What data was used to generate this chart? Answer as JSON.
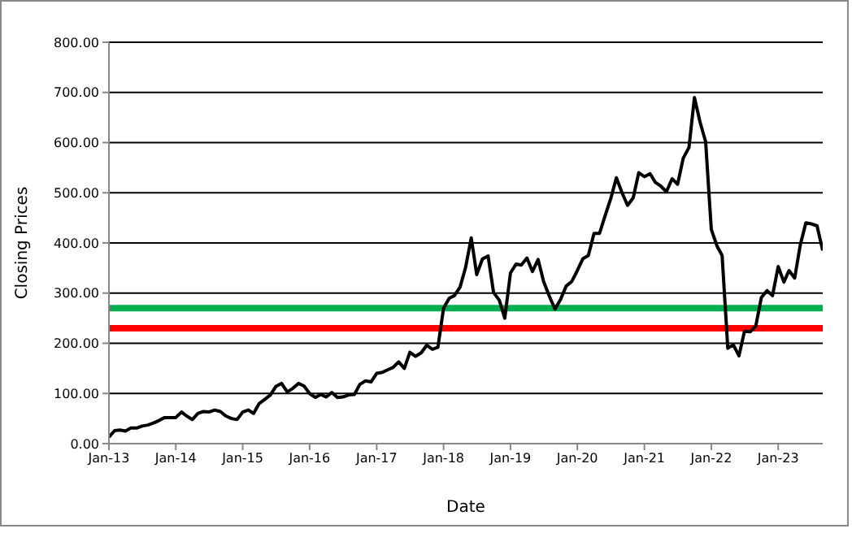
{
  "chart_data": {
    "type": "line",
    "xlabel": "Date",
    "ylabel": "Closing Prices",
    "x": [
      "2013-01",
      "2013-02",
      "2013-03",
      "2013-04",
      "2013-05",
      "2013-06",
      "2013-07",
      "2013-08",
      "2013-09",
      "2013-10",
      "2013-11",
      "2013-12",
      "2014-01",
      "2014-02",
      "2014-03",
      "2014-04",
      "2014-05",
      "2014-06",
      "2014-07",
      "2014-08",
      "2014-09",
      "2014-10",
      "2014-11",
      "2014-12",
      "2015-01",
      "2015-02",
      "2015-03",
      "2015-04",
      "2015-05",
      "2015-06",
      "2015-07",
      "2015-08",
      "2015-09",
      "2015-10",
      "2015-11",
      "2015-12",
      "2016-01",
      "2016-02",
      "2016-03",
      "2016-04",
      "2016-05",
      "2016-06",
      "2016-07",
      "2016-08",
      "2016-09",
      "2016-10",
      "2016-11",
      "2016-12",
      "2017-01",
      "2017-02",
      "2017-03",
      "2017-04",
      "2017-05",
      "2017-06",
      "2017-07",
      "2017-08",
      "2017-09",
      "2017-10",
      "2017-11",
      "2017-12",
      "2018-01",
      "2018-02",
      "2018-03",
      "2018-04",
      "2018-05",
      "2018-06",
      "2018-07",
      "2018-08",
      "2018-09",
      "2018-10",
      "2018-11",
      "2018-12",
      "2019-01",
      "2019-02",
      "2019-03",
      "2019-04",
      "2019-05",
      "2019-06",
      "2019-07",
      "2019-08",
      "2019-09",
      "2019-10",
      "2019-11",
      "2019-12",
      "2020-01",
      "2020-02",
      "2020-03",
      "2020-04",
      "2020-05",
      "2020-06",
      "2020-07",
      "2020-08",
      "2020-09",
      "2020-10",
      "2020-11",
      "2020-12",
      "2021-01",
      "2021-02",
      "2021-03",
      "2021-04",
      "2021-05",
      "2021-06",
      "2021-07",
      "2021-08",
      "2021-09",
      "2021-10",
      "2021-11",
      "2021-12",
      "2022-01",
      "2022-02",
      "2022-03",
      "2022-04",
      "2022-05",
      "2022-06",
      "2022-07",
      "2022-08",
      "2022-09",
      "2022-10",
      "2022-11",
      "2022-12",
      "2023-01",
      "2023-02",
      "2023-03",
      "2023-04",
      "2023-05",
      "2023-06",
      "2023-07",
      "2023-08",
      "2023-09"
    ],
    "series": [
      {
        "color": "#000000",
        "values": [
          13,
          26,
          27,
          25,
          31,
          31,
          35,
          37,
          41,
          46,
          52,
          52,
          52,
          63,
          55,
          48,
          60,
          64,
          63,
          67,
          64,
          55,
          50,
          48,
          63,
          67,
          60,
          80,
          88,
          97,
          114,
          120,
          103,
          110,
          120,
          115,
          100,
          92,
          98,
          93,
          102,
          92,
          93,
          97,
          98,
          118,
          125,
          123,
          140,
          142,
          147,
          152,
          163,
          150,
          182,
          174,
          181,
          196,
          188,
          192,
          270,
          290,
          295,
          312,
          351,
          410,
          337,
          368,
          374,
          301,
          286,
          250,
          340,
          358,
          356,
          370,
          343,
          367,
          323,
          294,
          268,
          287,
          314,
          323,
          345,
          369,
          375,
          419,
          419,
          455,
          488,
          530,
          500,
          475,
          490,
          540,
          532,
          538,
          521,
          513,
          502,
          528,
          517,
          569,
          590,
          690,
          640,
          602,
          427,
          394,
          375,
          190,
          197,
          175,
          224,
          223,
          235,
          291,
          305,
          295,
          353,
          322,
          345,
          330,
          395,
          440,
          438,
          434,
          385
        ]
      }
    ],
    "xlim": [
      "2013-01",
      "2023-09"
    ],
    "xticks": [
      {
        "value": "2013-01",
        "label": "Jan-13"
      },
      {
        "value": "2014-01",
        "label": "Jan-14"
      },
      {
        "value": "2015-01",
        "label": "Jan-15"
      },
      {
        "value": "2016-01",
        "label": "Jan-16"
      },
      {
        "value": "2017-01",
        "label": "Jan-17"
      },
      {
        "value": "2018-01",
        "label": "Jan-18"
      },
      {
        "value": "2019-01",
        "label": "Jan-19"
      },
      {
        "value": "2020-01",
        "label": "Jan-20"
      },
      {
        "value": "2021-01",
        "label": "Jan-21"
      },
      {
        "value": "2022-01",
        "label": "Jan-22"
      },
      {
        "value": "2023-01",
        "label": "Jan-23"
      }
    ],
    "ylim": [
      0,
      800
    ],
    "yticks": [
      {
        "value": 0,
        "label": "0.00"
      },
      {
        "value": 100,
        "label": "100.00"
      },
      {
        "value": 200,
        "label": "200.00"
      },
      {
        "value": 300,
        "label": "300.00"
      },
      {
        "value": 400,
        "label": "400.00"
      },
      {
        "value": 500,
        "label": "500.00"
      },
      {
        "value": 600,
        "label": "600.00"
      },
      {
        "value": 700,
        "label": "700.00"
      },
      {
        "value": 800,
        "label": "800.00"
      }
    ],
    "ref_lines": [
      {
        "axis": "y",
        "value": 270,
        "color": "#00b050"
      },
      {
        "axis": "y",
        "value": 230,
        "color": "#ff0000"
      }
    ],
    "grid": "y",
    "legend": false,
    "marker": "none",
    "line_style": "solid"
  }
}
